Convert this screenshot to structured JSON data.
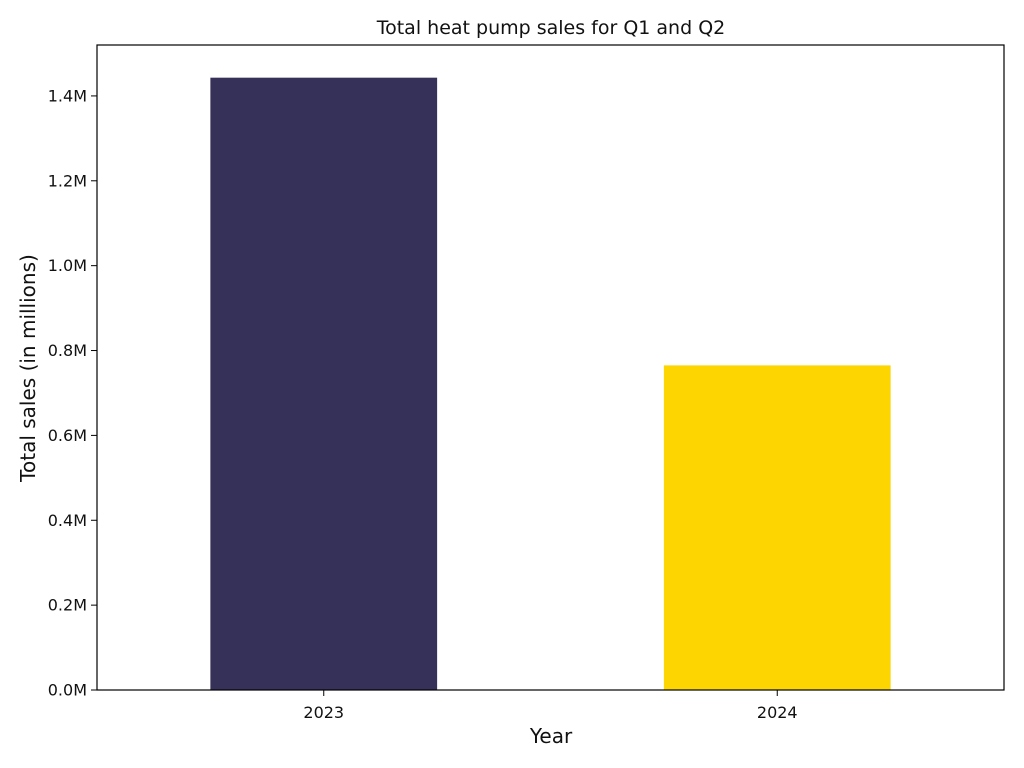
{
  "chart_data": {
    "type": "bar",
    "title": "Total heat pump sales for Q1 and Q2",
    "xlabel": "Year",
    "ylabel": "Total sales (in millions)",
    "categories": [
      "2023",
      "2024"
    ],
    "values": [
      1443000,
      765000
    ],
    "bar_colors": [
      "#363158",
      "#fdd500"
    ],
    "ylim": [
      0,
      1520000
    ],
    "yticks": [
      0,
      200000,
      400000,
      600000,
      800000,
      1000000,
      1200000,
      1400000
    ],
    "ytick_labels": [
      "0.0M",
      "0.2M",
      "0.4M",
      "0.6M",
      "0.8M",
      "1.0M",
      "1.2M",
      "1.4M"
    ],
    "grid": false,
    "legend": "none"
  }
}
